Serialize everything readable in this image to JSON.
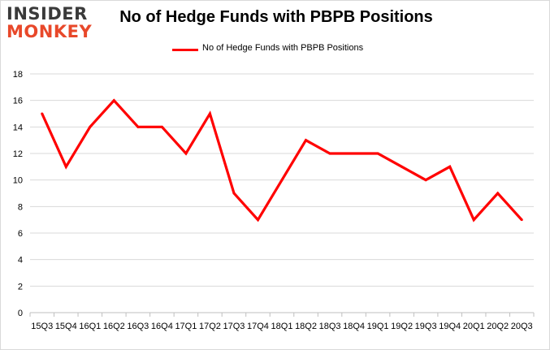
{
  "logo": {
    "line1": "INSIDER",
    "line2": "MONKEY"
  },
  "chart_data": {
    "type": "line",
    "title": "No of Hedge Funds with PBPB Positions",
    "xlabel": "",
    "ylabel": "",
    "categories": [
      "2015Q3",
      "2015Q4",
      "2016Q1",
      "2016Q2",
      "2016Q3",
      "2016Q4",
      "2017Q1",
      "2017Q2",
      "2017Q3",
      "2017Q4",
      "2018Q1",
      "2018Q2",
      "2018Q3",
      "2018Q4",
      "2019Q1",
      "2019Q2",
      "2019Q3",
      "2019Q4",
      "2020Q1",
      "2020Q2",
      "2020Q3"
    ],
    "tick_labels": [
      "15Q3",
      "15Q4",
      "16Q1",
      "16Q2",
      "16Q3",
      "16Q4",
      "17Q1",
      "17Q2",
      "17Q3",
      "17Q4",
      "18Q1",
      "18Q2",
      "18Q3",
      "18Q4",
      "19Q1",
      "19Q2",
      "19Q3",
      "19Q4",
      "20Q1",
      "20Q2",
      "20Q3"
    ],
    "series": [
      {
        "name": "No of Hedge Funds with PBPB Positions",
        "values": [
          15,
          11,
          14,
          16,
          14,
          14,
          12,
          15,
          9,
          7,
          10,
          13,
          12,
          12,
          12,
          11,
          10,
          11,
          7,
          9,
          7
        ]
      }
    ],
    "ylim": [
      0,
      18
    ],
    "yticks": [
      0,
      2,
      4,
      6,
      8,
      10,
      12,
      14,
      16,
      18
    ],
    "grid": true,
    "legend": "top-center",
    "line_color": "#ff0000",
    "grid_color": "#d9d9d9"
  }
}
